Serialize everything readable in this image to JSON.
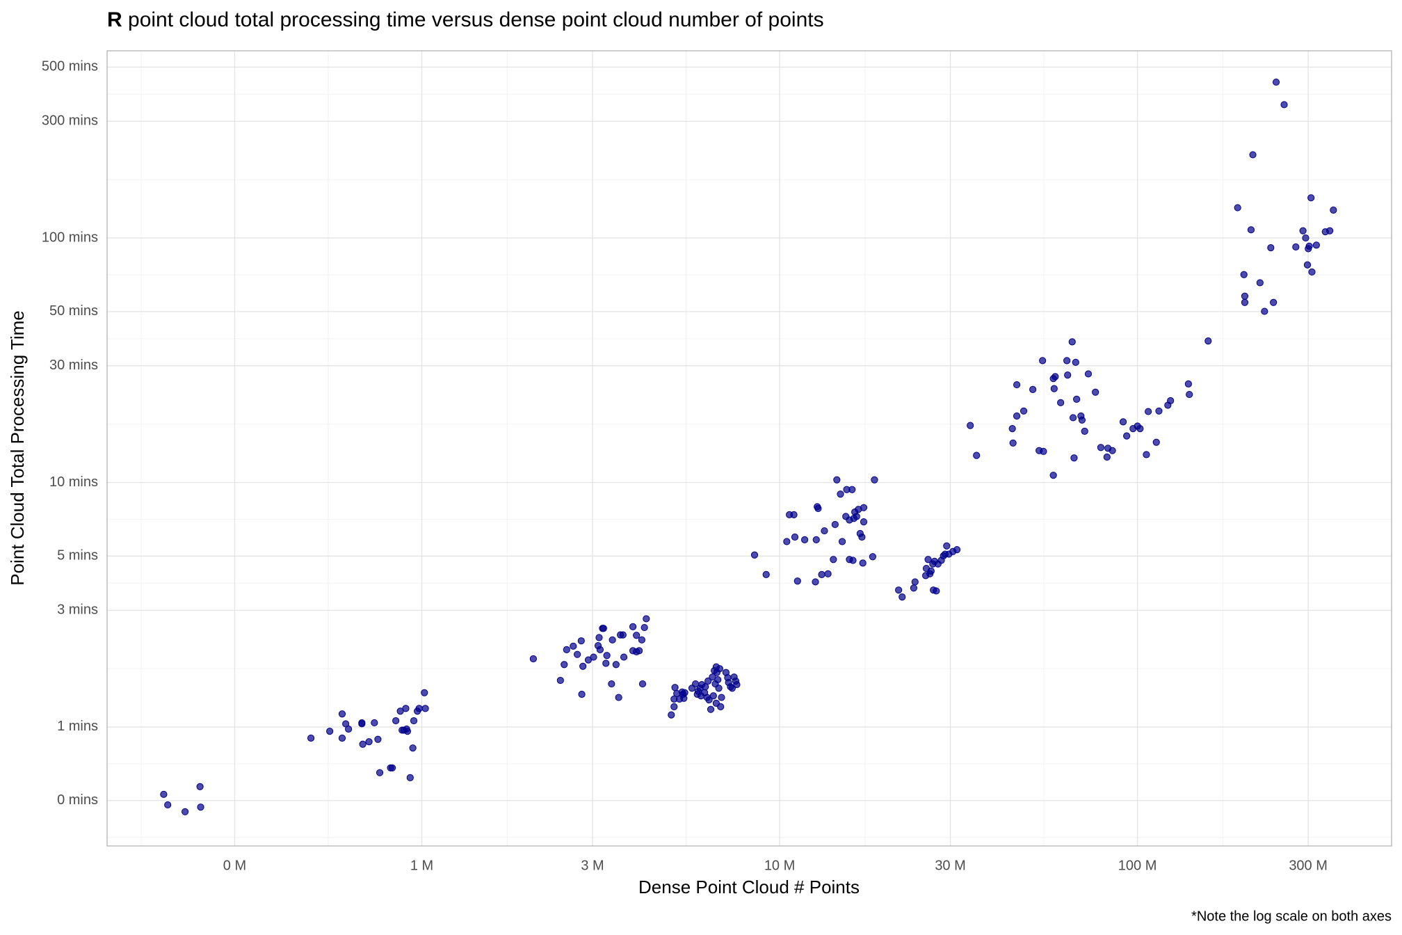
{
  "chart_data": {
    "type": "scatter",
    "title": {
      "bold": "R",
      "text": "point cloud total processing time versus dense point cloud number of points"
    },
    "xlabel": "Dense Point Cloud # Points",
    "ylabel": "Point Cloud Total Processing Time",
    "note": "*Note the log scale on both axes",
    "log_x": true,
    "log_y": true,
    "grid": true,
    "color": "#00008b",
    "xlim": [
      132000,
      513000000
    ],
    "ylim": [
      0.326,
      583
    ],
    "xticks": [
      {
        "value": 300000,
        "label": "0 M"
      },
      {
        "value": 1000000,
        "label": "1 M"
      },
      {
        "value": 3000000,
        "label": "3 M"
      },
      {
        "value": 10000000,
        "label": "10 M"
      },
      {
        "value": 30000000,
        "label": "30 M"
      },
      {
        "value": 100000000,
        "label": "100 M"
      },
      {
        "value": 300000000,
        "label": "300 M"
      }
    ],
    "yticks": [
      {
        "value": 0.5,
        "label": "0 mins"
      },
      {
        "value": 1,
        "label": "1 mins"
      },
      {
        "value": 3,
        "label": "3 mins"
      },
      {
        "value": 5,
        "label": "5 mins"
      },
      {
        "value": 10,
        "label": "10 mins"
      },
      {
        "value": 30,
        "label": "30 mins"
      },
      {
        "value": 50,
        "label": "50 mins"
      },
      {
        "value": 100,
        "label": "100 mins"
      },
      {
        "value": 300,
        "label": "300 mins"
      },
      {
        "value": 500,
        "label": "500 mins"
      }
    ],
    "x": [
      190000,
      195000,
      218000,
      240000,
      241000,
      490000,
      553000,
      599000,
      599000,
      613000,
      624000,
      680000,
      680000,
      684000,
      712000,
      737000,
      754000,
      763000,
      818000,
      827000,
      846000,
      871000,
      881000,
      891000,
      902000,
      907000,
      912000,
      928000,
      944000,
      950000,
      972000,
      983000,
      1017000,
      1023000,
      2050000,
      2440000,
      2500000,
      2540000,
      2650000,
      2720000,
      2790000,
      2820000,
      2800000,
      2920000,
      3020000,
      3110000,
      3130000,
      3150000,
      3200000,
      3220000,
      3270000,
      3290000,
      3390000,
      3410000,
      3490000,
      3550000,
      3590000,
      3650000,
      3670000,
      3890000,
      3890000,
      3980000,
      3980000,
      4050000,
      4120000,
      4140000,
      4190000,
      4240000,
      4980000,
      5070000,
      5070000,
      5100000,
      5160000,
      5250000,
      5340000,
      5370000,
      5400000,
      5430000,
      5690000,
      5820000,
      5890000,
      5920000,
      5990000,
      6030000,
      6060000,
      6170000,
      6200000,
      6270000,
      6310000,
      6350000,
      6420000,
      6490000,
      6530000,
      6570000,
      6610000,
      6650000,
      6650000,
      6680000,
      6720000,
      6760000,
      6800000,
      6840000,
      6880000,
      7080000,
      7160000,
      7200000,
      7290000,
      7370000,
      7460000,
      7540000,
      7590000,
      8510000,
      9170000,
      10470000,
      10650000,
      10960000,
      11030000,
      11220000,
      11750000,
      12590000,
      12660000,
      12740000,
      12810000,
      13110000,
      13340000,
      13650000,
      14130000,
      14290000,
      14450000,
      14790000,
      14960000,
      15310000,
      15400000,
      15670000,
      15670000,
      15940000,
      16030000,
      16130000,
      16220000,
      16410000,
      16600000,
      16790000,
      16980000,
      17080000,
      17180000,
      17180000,
      18200000,
      18410000,
      21500000,
      22000000,
      23700000,
      23900000,
      25600000,
      25700000,
      26000000,
      26300000,
      26500000,
      26800000,
      26900000,
      27100000,
      27400000,
      27700000,
      28300000,
      28700000,
      29000000,
      29300000,
      29700000,
      30500000,
      31300000,
      34100000,
      35500000,
      44700000,
      44900000,
      46000000,
      46000000,
      48100000,
      51000000,
      53100000,
      54300000,
      54600000,
      58200000,
      58200000,
      58500000,
      58900000,
      61000000,
      63500000,
      63800000,
      65700000,
      66100000,
      66500000,
      67200000,
      67600000,
      69500000,
      70000000,
      71200000,
      72900000,
      76300000,
      79000000,
      82200000,
      82700000,
      85100000,
      91200000,
      93300000,
      97200000,
      100000000,
      101700000,
      105900000,
      107200000,
      112900000,
      114800000,
      121600000,
      123700000,
      138800000,
      139600000,
      157600000,
      190500000,
      199500000,
      199500000,
      198400000,
      207700000,
      210100000,
      220000000,
      226500000,
      235800000,
      239900000,
      244100000,
      257000000,
      277000000,
      290100000,
      295100000,
      298500000,
      300200000,
      302000000,
      305500000,
      307300000,
      316200000,
      335000000,
      344700000,
      352800000
    ],
    "values": [
      0.53,
      0.48,
      0.45,
      0.57,
      0.47,
      0.9,
      0.96,
      1.13,
      0.9,
      1.03,
      0.98,
      1.03,
      1.04,
      0.85,
      0.87,
      1.04,
      0.89,
      0.65,
      0.68,
      0.68,
      1.06,
      1.16,
      0.97,
      0.97,
      1.19,
      0.98,
      0.96,
      0.62,
      0.82,
      1.06,
      1.16,
      1.19,
      1.38,
      1.19,
      1.9,
      1.55,
      1.8,
      2.07,
      2.14,
      1.98,
      2.25,
      1.77,
      1.36,
      1.88,
      1.93,
      2.15,
      2.32,
      2.07,
      2.53,
      2.53,
      1.82,
      1.96,
      1.5,
      2.27,
      1.8,
      1.32,
      2.38,
      2.38,
      1.93,
      2.57,
      2.05,
      2.37,
      2.03,
      2.05,
      2.27,
      1.5,
      2.55,
      2.77,
      1.12,
      1.21,
      1.3,
      1.45,
      1.37,
      1.3,
      1.39,
      1.36,
      1.31,
      1.38,
      1.44,
      1.5,
      1.36,
      1.4,
      1.44,
      1.34,
      1.49,
      1.38,
      1.46,
      1.32,
      1.54,
      1.29,
      1.18,
      1.6,
      1.34,
      1.7,
      1.5,
      1.76,
      1.25,
      1.67,
      1.56,
      1.44,
      1.73,
      1.21,
      1.32,
      1.67,
      1.59,
      1.52,
      1.46,
      1.44,
      1.6,
      1.54,
      1.49,
      5.05,
      4.2,
      5.73,
      7.38,
      7.38,
      5.98,
      3.95,
      5.83,
      3.92,
      5.83,
      7.96,
      7.83,
      4.2,
      6.34,
      4.23,
      4.84,
      6.73,
      10.25,
      8.96,
      5.73,
      7.26,
      9.35,
      4.84,
      7.02,
      9.35,
      4.8,
      7.13,
      7.57,
      7.26,
      7.76,
      6.18,
      5.98,
      4.68,
      7.89,
      6.9,
      4.97,
      10.25,
      3.63,
      3.4,
      3.7,
      3.92,
      4.16,
      4.45,
      4.84,
      4.23,
      4.34,
      4.64,
      3.63,
      4.76,
      3.6,
      4.64,
      4.8,
      5.01,
      5.09,
      5.5,
      5.09,
      5.22,
      5.31,
      17.1,
      12.9,
      16.6,
      14.5,
      25.1,
      18.7,
      19.6,
      24.0,
      13.5,
      31.5,
      13.4,
      26.6,
      10.7,
      24.2,
      27.1,
      21.2,
      31.5,
      27.5,
      37.6,
      18.4,
      12.6,
      31.0,
      21.9,
      18.7,
      18.0,
      16.2,
      27.8,
      23.4,
      13.9,
      12.7,
      13.8,
      13.5,
      17.7,
      15.5,
      16.6,
      17.0,
      16.6,
      13.0,
      19.5,
      14.6,
      19.6,
      20.7,
      21.6,
      25.3,
      22.9,
      37.9,
      133,
      54.5,
      57.8,
      70.8,
      108,
      219,
      65.6,
      50.1,
      91.2,
      54.5,
      434,
      351,
      91.9,
      107,
      100,
      77.6,
      90.4,
      92.6,
      146,
      72.6,
      93.5,
      106,
      107,
      130
    ]
  }
}
